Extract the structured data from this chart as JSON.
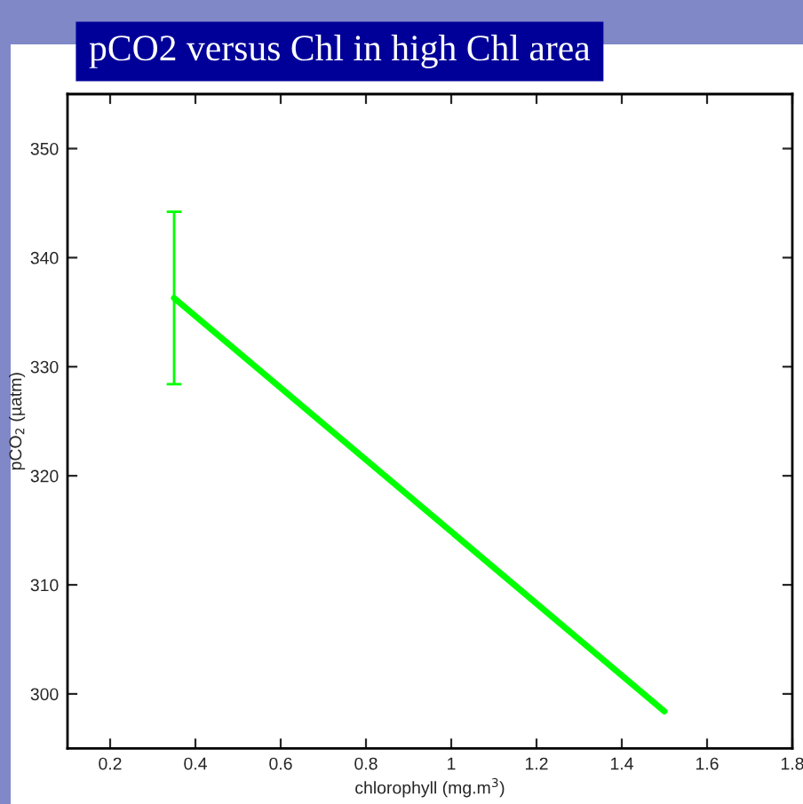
{
  "chart_data": {
    "type": "line",
    "title": "pCO2 versus Chl in high Chl area",
    "xlabel": "chlorophyll (mg.m$^{3}$)",
    "ylabel": "pCO$_{2}$ (µatm)",
    "x": [
      0.35,
      1.5
    ],
    "series": [
      {
        "color": "#00ff00",
        "values": [
          336.3,
          298.4
        ],
        "errors": [
          7.9,
          null
        ]
      }
    ],
    "xlim": [
      0.1,
      1.8
    ],
    "xticks": [
      0.2,
      0.4,
      0.6,
      0.8,
      1,
      1.2,
      1.4,
      1.6,
      1.8
    ],
    "ylim": [
      295,
      355
    ],
    "yticks": [
      300,
      310,
      320,
      330,
      340,
      350
    ],
    "grid": false,
    "legend": false,
    "marker": "none",
    "line_style": "solid"
  }
}
